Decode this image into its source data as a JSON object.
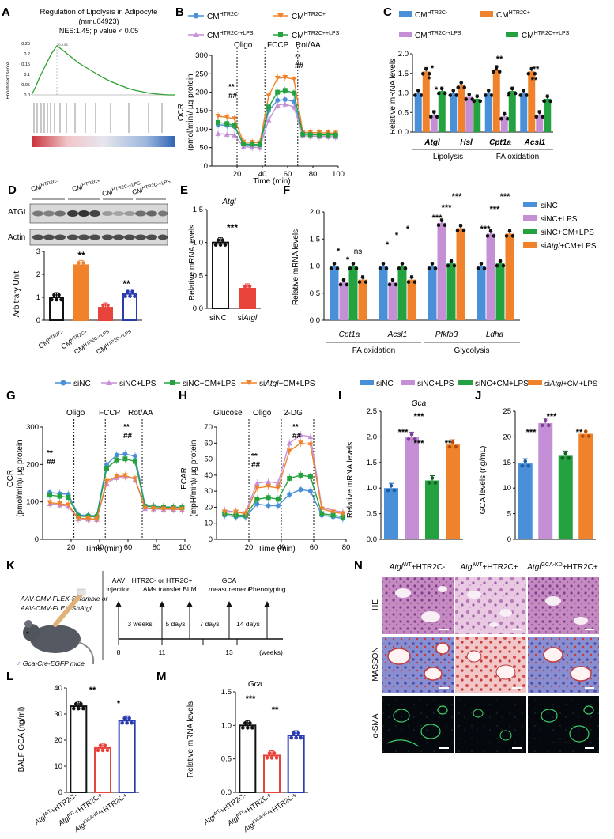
{
  "panel_letters": [
    "A",
    "B",
    "C",
    "D",
    "E",
    "F",
    "G",
    "H",
    "I",
    "J",
    "K",
    "L",
    "M",
    "N"
  ],
  "colors": {
    "blue": "#4a90d9",
    "orange": "#f0822b",
    "purple": "#c58fd6",
    "green": "#23a23f",
    "red": "#e8433a",
    "navy": "#2a3bb0",
    "black": "#111111"
  },
  "panelA": {
    "title": "Regulation of Lipolysis in Adipocyte",
    "subtitle": "(mmu04923)",
    "stats": "NES:1.45; p value < 0.05",
    "ylabel": "Enrichment score",
    "peak_label": "20-0.08",
    "ticks": [
      "0.25",
      "0.2",
      "0.15",
      "0.1",
      "0.05",
      "0.0"
    ]
  },
  "panelB": {
    "legend": [
      "CM",
      "HTR2C-",
      "CM",
      "HTR2C+",
      "CM",
      "HTR2C-+LPS",
      "CM",
      "HTR2C++LPS"
    ],
    "annotations": [
      "Oligo",
      "FCCP",
      "Rot/AA",
      "**",
      "##",
      "**",
      "##"
    ],
    "ylabel1": "OCR",
    "ylabel2": "(pmol/min)/ µg protein",
    "xlabel": "Time (min)",
    "yticks": [
      "0",
      "50",
      "100",
      "150",
      "200",
      "250",
      "300"
    ],
    "xticks": [
      "20",
      "40",
      "60",
      "80",
      "100"
    ]
  },
  "panelC": {
    "legend": [
      "CM",
      "HTR2C-",
      "CM",
      "HTR2C+",
      "CM",
      "HTR2C-+LPS",
      "CM",
      "HTR2C++LPS"
    ],
    "ylabel": "Relative mRNA levels",
    "yticks": [
      "0.0",
      "0.5",
      "1.0",
      "1.5",
      "2.0"
    ],
    "genes": [
      "Atgl",
      "Hsl",
      "Cpt1a",
      "Acsl1"
    ],
    "groups": [
      "Lipolysis",
      "FA oxidation"
    ],
    "stars": [
      "*",
      "*",
      "*",
      "**",
      "*",
      "*",
      "**",
      "**",
      "*"
    ]
  },
  "panelD": {
    "lanes": [
      "CM",
      "HTR2C-",
      "CM",
      "HTR2C+",
      "CM",
      "HTR2C-+LPS",
      "CM",
      "HTR2C-+LPS"
    ],
    "rows": [
      "ATGL",
      "Actin"
    ],
    "ylabel": "Arbitrary Unit",
    "yticks": [
      "0",
      "1",
      "2",
      "3"
    ],
    "xlabels": [
      "CM",
      "HTR2C-",
      "CM",
      "HTR2C+",
      "CM",
      "HTR2C-+LPS",
      "CM",
      "HTR2C-+LPS"
    ],
    "stars": [
      "**",
      "**"
    ]
  },
  "panelE": {
    "gene": "Atgl",
    "ylabel": "Relative mRNA levels",
    "yticks": [
      "0.0",
      "0.5",
      "1.0",
      "1.5"
    ],
    "xlabels": [
      "siNC",
      "si",
      "Atgl"
    ],
    "stars": "***"
  },
  "panelF": {
    "legend": [
      "siNC",
      "siNC+LPS",
      "siNC+CM+LPS",
      "si",
      "Atgl",
      "+CM+LPS"
    ],
    "ylabel": "Relative mRNA levels",
    "yticks": [
      "0.0",
      "0.5",
      "1.0",
      "1.5",
      "2.0"
    ],
    "genes": [
      "Cpt1a",
      "Acsl1",
      "Pfkfb3",
      "Ldha"
    ],
    "groups": [
      "FA oxidation",
      "Glycolysis"
    ],
    "stars": [
      "*",
      "*",
      "ns",
      "*",
      "*",
      "*",
      "***",
      "***",
      "***",
      "***",
      "***",
      "***"
    ]
  },
  "legendGH": [
    "siNC",
    "siNC+LPS",
    "siNC+CM+LPS",
    "si",
    "Atgl",
    "+CM+LPS"
  ],
  "legendIJ": [
    "siNC",
    "siNC+LPS",
    "siNC+CM+LPS",
    "si",
    "Atgl",
    "+CM+LPS"
  ],
  "panelG": {
    "annotations": [
      "Oligo",
      "FCCP",
      "Rot/AA",
      "**",
      "##",
      "**",
      "##"
    ],
    "ylabel1": "OCR",
    "ylabel2": "(pmol/min)/ µg protein",
    "xlabel": "Time (min)",
    "yticks": [
      "0",
      "100",
      "200",
      "300"
    ],
    "xticks": [
      "20",
      "40",
      "60",
      "80",
      "100"
    ]
  },
  "panelH": {
    "annotations": [
      "Glucose",
      "Oligo",
      "2-DG",
      "**",
      "##",
      "**",
      "##"
    ],
    "ylabel1": "ECAR",
    "ylabel2": "(mpH/min)/ µg protein",
    "xlabel": "Time (min)",
    "yticks": [
      "0",
      "10",
      "20",
      "30",
      "40",
      "50",
      "60",
      "70"
    ],
    "xticks": [
      "20",
      "40",
      "60",
      "80"
    ]
  },
  "panelI": {
    "gene": "Gca",
    "ylabel": "Relative mRNA levels",
    "yticks": [
      "0.0",
      "0.5",
      "1.0",
      "1.5",
      "2.0",
      "2.5"
    ],
    "stars": [
      "***",
      "***",
      "***",
      "**"
    ]
  },
  "panelJ": {
    "ylabel": "GCA levels (ng/mL)",
    "yticks": [
      "0",
      "5",
      "10",
      "15",
      "20",
      "25"
    ],
    "stars": [
      "***",
      "***",
      "**"
    ]
  },
  "panelK": {
    "constructs": [
      "AAV-CMV-FLEX-Scramble or",
      "AAV-CMV-FLEX-ShAtgl"
    ],
    "mouse": "Gca-Cre-EGFP mice",
    "events": [
      "AAV",
      "injection",
      "HTR2C- or HTR2C+",
      "AMs transfer",
      "BLM",
      "GCA",
      "measurement",
      "Phenotyping"
    ],
    "intervals": [
      "3 weeks",
      "5 days",
      "7 days",
      "14 days"
    ],
    "ticks": [
      "8",
      "11",
      "13",
      "(weeks)"
    ]
  },
  "panelL": {
    "ylabel": "BALF GCA (ng/ml)",
    "yticks": [
      "0",
      "10",
      "20",
      "30",
      "40"
    ],
    "stars": [
      "**",
      "*"
    ]
  },
  "panelM": {
    "gene": "Gca",
    "ylabel": "Relative mRNA levels",
    "yticks": [
      "0.0",
      "0.5",
      "1.0",
      "1.5"
    ],
    "stars": [
      "***",
      "**"
    ]
  },
  "groupsLM": [
    "Atgl",
    "WT",
    "+HTR2C-",
    "Atgl",
    "WT",
    "+HTR2C+",
    "Atgl",
    "GCA-KD",
    "+HTR2C+"
  ],
  "panelN": {
    "columns": [
      "Atgl",
      "WT",
      "+HTR2C-",
      "Atgl",
      "WT",
      "+HTR2C+",
      "Atgl",
      "GCA-KD",
      "+HTR2C+"
    ],
    "rows": [
      "HE",
      "MASSON",
      "α-SMA"
    ]
  },
  "chart_data": [
    {
      "panel": "B",
      "type": "line",
      "x": [
        5,
        12,
        18,
        25,
        32,
        38,
        45,
        52,
        58,
        65,
        72,
        78,
        85,
        92,
        98
      ],
      "series": [
        {
          "name": "CMHTR2C-",
          "values": [
            112,
            110,
            107,
            58,
            57,
            56,
            150,
            178,
            180,
            175,
            88,
            87,
            86,
            85,
            85
          ]
        },
        {
          "name": "CMHTR2C+",
          "values": [
            135,
            132,
            128,
            65,
            64,
            63,
            190,
            238,
            240,
            235,
            92,
            91,
            90,
            90,
            89
          ]
        },
        {
          "name": "CMHTR2C-+LPS",
          "values": [
            88,
            86,
            84,
            52,
            51,
            50,
            125,
            165,
            168,
            160,
            82,
            81,
            80,
            80,
            79
          ]
        },
        {
          "name": "CMHTR2C++LPS",
          "values": [
            118,
            115,
            110,
            60,
            59,
            58,
            160,
            200,
            205,
            198,
            86,
            85,
            84,
            84,
            84
          ]
        }
      ],
      "ylim": [
        0,
        300
      ],
      "xlim": [
        0,
        100
      ]
    },
    {
      "panel": "C",
      "type": "bar",
      "categories": [
        "Atgl",
        "Hsl",
        "Cpt1a",
        "Acsl1"
      ],
      "series": [
        {
          "name": "CMHTR2C-",
          "values": [
            1.0,
            1.0,
            1.0,
            1.0
          ]
        },
        {
          "name": "CMHTR2C+",
          "values": [
            1.55,
            1.2,
            1.6,
            1.55
          ]
        },
        {
          "name": "CMHTR2C-+LPS",
          "values": [
            0.45,
            0.9,
            0.4,
            0.45
          ]
        },
        {
          "name": "CMHTR2C++LPS",
          "values": [
            1.05,
            0.85,
            1.05,
            0.85
          ]
        }
      ],
      "ylim": [
        0,
        2.0
      ]
    },
    {
      "panel": "D",
      "type": "bar",
      "categories": [
        "CMHTR2C-",
        "CMHTR2C+",
        "CMHTR2C-+LPS",
        "CMHTR2C-+LPS"
      ],
      "values": [
        1.0,
        2.4,
        0.55,
        1.15
      ],
      "ylim": [
        0,
        3
      ]
    },
    {
      "panel": "E",
      "type": "bar",
      "categories": [
        "siNC",
        "siAtgl"
      ],
      "values": [
        1.0,
        0.3
      ],
      "ylim": [
        0,
        1.5
      ]
    },
    {
      "panel": "F",
      "type": "bar",
      "categories": [
        "Cpt1a",
        "Acsl1",
        "Pfkfb3",
        "Ldha"
      ],
      "series": [
        {
          "name": "siNC",
          "values": [
            1.0,
            1.0,
            1.0,
            1.0
          ]
        },
        {
          "name": "siNC+LPS",
          "values": [
            0.7,
            0.7,
            1.8,
            1.6
          ]
        },
        {
          "name": "siNC+CM+LPS",
          "values": [
            1.0,
            1.0,
            1.05,
            1.05
          ]
        },
        {
          "name": "siAtgl+CM+LPS",
          "values": [
            0.75,
            0.75,
            1.7,
            1.6
          ]
        }
      ],
      "ylim": [
        0,
        2.0
      ]
    },
    {
      "panel": "G",
      "type": "line",
      "x": [
        5,
        12,
        18,
        25,
        32,
        38,
        45,
        52,
        58,
        65,
        72,
        78,
        85,
        92,
        98
      ],
      "series": [
        {
          "name": "siNC",
          "values": [
            125,
            122,
            120,
            65,
            64,
            63,
            200,
            225,
            228,
            222,
            90,
            88,
            87,
            86,
            86
          ]
        },
        {
          "name": "siNC+LPS",
          "values": [
            95,
            92,
            88,
            55,
            54,
            53,
            150,
            165,
            168,
            160,
            82,
            81,
            80,
            80,
            79
          ]
        },
        {
          "name": "siNC+CM+LPS",
          "values": [
            118,
            115,
            112,
            62,
            61,
            60,
            190,
            212,
            215,
            208,
            88,
            87,
            86,
            85,
            85
          ]
        },
        {
          "name": "siAtgl+CM+LPS",
          "values": [
            98,
            95,
            92,
            56,
            55,
            54,
            155,
            168,
            170,
            162,
            83,
            82,
            81,
            81,
            80
          ]
        }
      ],
      "ylim": [
        0,
        300
      ],
      "xlim": [
        0,
        100
      ]
    },
    {
      "panel": "H",
      "type": "line",
      "x": [
        5,
        12,
        18,
        25,
        32,
        38,
        45,
        52,
        58,
        65,
        72,
        78
      ],
      "series": [
        {
          "name": "siNC",
          "values": [
            15,
            14,
            14,
            22,
            21,
            21,
            28,
            31,
            30,
            15,
            14,
            13
          ]
        },
        {
          "name": "siNC+LPS",
          "values": [
            18,
            17,
            17,
            35,
            36,
            35,
            60,
            65,
            64,
            20,
            18,
            17
          ]
        },
        {
          "name": "siNC+CM+LPS",
          "values": [
            16,
            15,
            15,
            25,
            26,
            25,
            38,
            40,
            39,
            16,
            15,
            14
          ]
        },
        {
          "name": "siAtgl+CM+LPS",
          "values": [
            17,
            17,
            16,
            32,
            33,
            32,
            55,
            60,
            59,
            19,
            17,
            16
          ]
        }
      ],
      "ylim": [
        0,
        70
      ],
      "xlim": [
        0,
        80
      ]
    },
    {
      "panel": "I",
      "type": "bar",
      "categories": [
        "siNC",
        "siNC+LPS",
        "siNC+CM+LPS",
        "siAtgl+CM+LPS"
      ],
      "values": [
        1.0,
        2.0,
        1.15,
        1.85
      ],
      "ylim": [
        0,
        2.5
      ]
    },
    {
      "panel": "J",
      "type": "bar",
      "categories": [
        "siNC",
        "siNC+LPS",
        "siNC+CM+LPS",
        "siAtgl+CM+LPS"
      ],
      "values": [
        14.8,
        22.7,
        16.3,
        20.6
      ],
      "ylim": [
        0,
        25
      ]
    },
    {
      "panel": "L",
      "type": "bar",
      "categories": [
        "AtglWT+HTR2C-",
        "AtglWT+HTR2C+",
        "AtglGCA-KD+HTR2C+"
      ],
      "values": [
        33,
        17,
        27.5
      ],
      "ylim": [
        0,
        40
      ]
    },
    {
      "panel": "M",
      "type": "bar",
      "categories": [
        "AtglWT+HTR2C-",
        "AtglWT+HTR2C+",
        "AtglGCA-KD+HTR2C+"
      ],
      "values": [
        1.0,
        0.55,
        0.85
      ],
      "ylim": [
        0,
        1.5
      ]
    }
  ]
}
